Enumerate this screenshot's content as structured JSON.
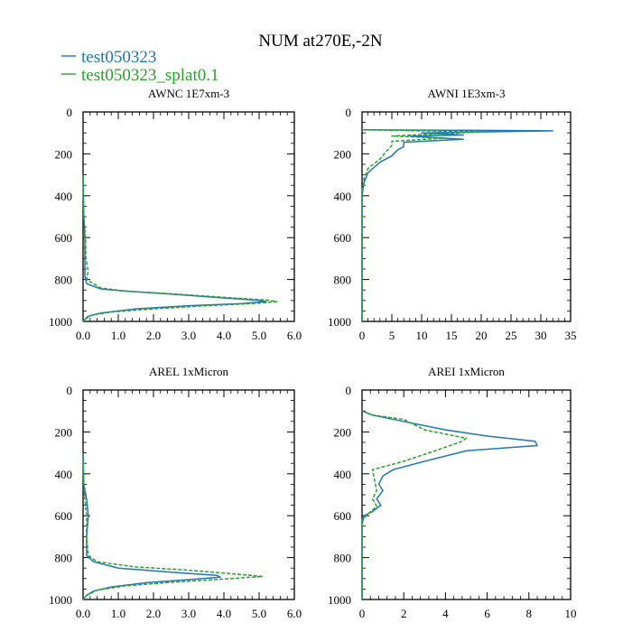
{
  "title": "NUM at270E,-2N",
  "legend": [
    {
      "name": "test050323",
      "color": "#1f77b4",
      "style": "solid"
    },
    {
      "name": "test050323_splat0.1",
      "color": "#2ca02c",
      "style": "dashed"
    }
  ],
  "chart_data": [
    {
      "type": "line",
      "title": "AWNC  1E7xm-3",
      "xlim": [
        0,
        6
      ],
      "xticks": [
        0,
        1,
        2,
        3,
        4,
        5,
        6
      ],
      "xtick_labels": [
        "0.0",
        "1.0",
        "2.0",
        "3.0",
        "4.0",
        "5.0",
        "6.0"
      ],
      "ylim": [
        1000,
        0
      ],
      "yticks": [
        0,
        200,
        400,
        600,
        800,
        1000
      ],
      "ytick_labels": [
        "0",
        "200",
        "400",
        "600",
        "800",
        "1000"
      ],
      "series": [
        {
          "name": "test050323",
          "points": [
            [
              0,
              300
            ],
            [
              0.02,
              500
            ],
            [
              0.05,
              600
            ],
            [
              0.05,
              700
            ],
            [
              0.05,
              780
            ],
            [
              0.1,
              820
            ],
            [
              0.5,
              845
            ],
            [
              1.2,
              855
            ],
            [
              2.5,
              870
            ],
            [
              4.0,
              888
            ],
            [
              5.0,
              900
            ],
            [
              5.2,
              905
            ],
            [
              4.5,
              915
            ],
            [
              3.0,
              925
            ],
            [
              1.5,
              940
            ],
            [
              0.5,
              960
            ],
            [
              0.15,
              975
            ],
            [
              0.05,
              990
            ],
            [
              0,
              1000
            ]
          ]
        },
        {
          "name": "test050323_splat0.1",
          "points": [
            [
              0,
              300
            ],
            [
              0.02,
              500
            ],
            [
              0.07,
              600
            ],
            [
              0.08,
              700
            ],
            [
              0.15,
              760
            ],
            [
              0.1,
              800
            ],
            [
              0.5,
              840
            ],
            [
              1.2,
              855
            ],
            [
              2.5,
              868
            ],
            [
              4.0,
              885
            ],
            [
              5.2,
              898
            ],
            [
              5.5,
              905
            ],
            [
              5.0,
              913
            ],
            [
              3.5,
              925
            ],
            [
              2.0,
              940
            ],
            [
              0.8,
              955
            ],
            [
              0.25,
              970
            ],
            [
              0.05,
              990
            ],
            [
              0,
              1000
            ]
          ]
        }
      ]
    },
    {
      "type": "line",
      "title": "AWNI  1E3xm-3",
      "xlim": [
        0,
        35
      ],
      "xticks": [
        0,
        5,
        10,
        15,
        20,
        25,
        30,
        35
      ],
      "xtick_labels": [
        "0",
        "5",
        "10",
        "15",
        "20",
        "25",
        "30",
        "35"
      ],
      "ylim": [
        1000,
        0
      ],
      "yticks": [
        0,
        200,
        400,
        600,
        800,
        1000
      ],
      "ytick_labels": [
        "0",
        "200",
        "400",
        "600",
        "800",
        "1000"
      ],
      "series": [
        {
          "name": "test050323",
          "points": [
            [
              0,
              85
            ],
            [
              32,
              90
            ],
            [
              10,
              100
            ],
            [
              17,
              110
            ],
            [
              8,
              115
            ],
            [
              17,
              130
            ],
            [
              7,
              145
            ],
            [
              7,
              165
            ],
            [
              6,
              180
            ],
            [
              5,
              210
            ],
            [
              3,
              240
            ],
            [
              1,
              290
            ],
            [
              0.3,
              340
            ],
            [
              0,
              400
            ],
            [
              0,
              1000
            ]
          ]
        },
        {
          "name": "test050323_splat0.1",
          "points": [
            [
              0,
              85
            ],
            [
              20,
              95
            ],
            [
              12,
              105
            ],
            [
              5,
              115
            ],
            [
              14,
              125
            ],
            [
              5,
              140
            ],
            [
              5,
              160
            ],
            [
              4,
              190
            ],
            [
              3,
              225
            ],
            [
              1,
              270
            ],
            [
              0.3,
              320
            ],
            [
              0,
              380
            ],
            [
              0,
              1000
            ]
          ]
        }
      ]
    },
    {
      "type": "line",
      "title": "AREL  1xMicron",
      "xlim": [
        0,
        6
      ],
      "xticks": [
        0,
        1,
        2,
        3,
        4,
        5,
        6
      ],
      "xtick_labels": [
        "0.0",
        "1.0",
        "2.0",
        "3.0",
        "4.0",
        "5.0",
        "6.0"
      ],
      "ylim": [
        1000,
        0
      ],
      "yticks": [
        0,
        200,
        400,
        600,
        800,
        1000
      ],
      "ytick_labels": [
        "0",
        "200",
        "400",
        "600",
        "800",
        "1000"
      ],
      "series": [
        {
          "name": "test050323",
          "points": [
            [
              0,
              300
            ],
            [
              0.02,
              450
            ],
            [
              0.1,
              520
            ],
            [
              0.15,
              600
            ],
            [
              0.1,
              700
            ],
            [
              0.1,
              790
            ],
            [
              0.3,
              820
            ],
            [
              1.0,
              850
            ],
            [
              2.5,
              870
            ],
            [
              3.8,
              885
            ],
            [
              3.9,
              893
            ],
            [
              3.0,
              905
            ],
            [
              1.8,
              920
            ],
            [
              0.8,
              940
            ],
            [
              0.3,
              960
            ],
            [
              0.1,
              980
            ],
            [
              0,
              1000
            ]
          ]
        },
        {
          "name": "test050323_splat0.1",
          "points": [
            [
              0,
              300
            ],
            [
              0.02,
              450
            ],
            [
              0.05,
              520
            ],
            [
              0.1,
              600
            ],
            [
              0.1,
              700
            ],
            [
              0.15,
              790
            ],
            [
              0.4,
              820
            ],
            [
              1.5,
              845
            ],
            [
              3.0,
              860
            ],
            [
              4.3,
              878
            ],
            [
              5.1,
              890
            ],
            [
              4.0,
              902
            ],
            [
              2.5,
              918
            ],
            [
              1.2,
              935
            ],
            [
              0.4,
              955
            ],
            [
              0.1,
              980
            ],
            [
              0,
              1000
            ]
          ]
        }
      ]
    },
    {
      "type": "line",
      "title": "AREI  1xMicron",
      "xlim": [
        0,
        10
      ],
      "xticks": [
        0,
        2,
        4,
        6,
        8,
        10
      ],
      "xtick_labels": [
        "0",
        "2",
        "4",
        "6",
        "8",
        "10"
      ],
      "ylim": [
        1000,
        0
      ],
      "yticks": [
        0,
        200,
        400,
        600,
        800,
        1000
      ],
      "ytick_labels": [
        "0",
        "200",
        "400",
        "600",
        "800",
        "1000"
      ],
      "series": [
        {
          "name": "test050323",
          "points": [
            [
              0,
              100
            ],
            [
              0.5,
              120
            ],
            [
              2,
              150
            ],
            [
              4,
              190
            ],
            [
              6,
              220
            ],
            [
              8.3,
              245
            ],
            [
              8.4,
              265
            ],
            [
              5,
              290
            ],
            [
              3,
              340
            ],
            [
              1.5,
              380
            ],
            [
              1,
              410
            ],
            [
              0.8,
              450
            ],
            [
              1,
              480
            ],
            [
              0.7,
              520
            ],
            [
              0.9,
              550
            ],
            [
              0.5,
              580
            ],
            [
              0.1,
              600
            ],
            [
              0,
              640
            ],
            [
              0,
              1000
            ]
          ]
        },
        {
          "name": "test050323_splat0.1",
          "points": [
            [
              0,
              100
            ],
            [
              0.5,
              120
            ],
            [
              2,
              140
            ],
            [
              3,
              190
            ],
            [
              5,
              230
            ],
            [
              4.8,
              245
            ],
            [
              3.5,
              290
            ],
            [
              2,
              340
            ],
            [
              0.5,
              380
            ],
            [
              0.6,
              430
            ],
            [
              0.7,
              480
            ],
            [
              0.5,
              520
            ],
            [
              0.7,
              555
            ],
            [
              0.3,
              590
            ],
            [
              0,
              620
            ],
            [
              0,
              1000
            ]
          ]
        }
      ]
    }
  ]
}
